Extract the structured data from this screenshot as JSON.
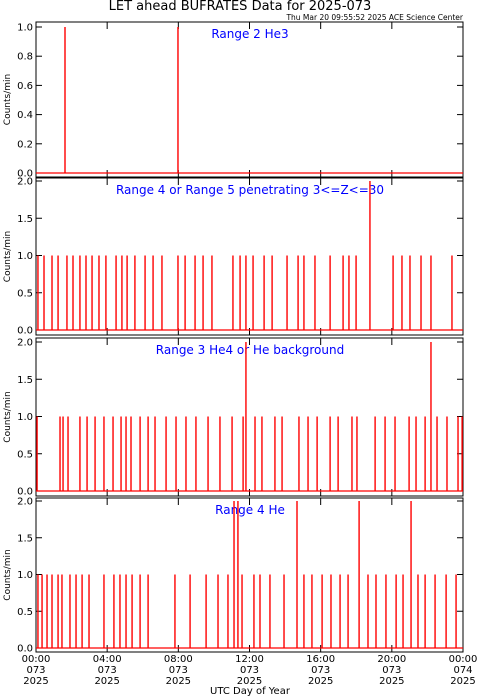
{
  "title": "LET ahead BUFRATES Data for 2025-073",
  "timestamp": "Thu Mar 20 09:55:52 2025 ACE Science Center",
  "xlabel": "UTC Day of Year",
  "chart_data": [
    {
      "type": "spike",
      "title": "Range 2 He3",
      "ylabel": "Counts/min",
      "color": "#ff0000",
      "label_color": "#0000ff",
      "xlim": [
        0,
        24
      ],
      "ylim": [
        0,
        1
      ],
      "yticks": [
        {
          "value": 0,
          "label": "0.0"
        },
        0.2,
        0.4,
        0.6,
        0.8,
        {
          "value": 1,
          "label": "1.0"
        }
      ],
      "x": [
        1.63,
        7.98
      ],
      "values": [
        1,
        1
      ]
    },
    {
      "type": "spike",
      "title": "Range 4 or Range 5 penetrating 3<=Z<=30",
      "ylabel": "Counts/min",
      "color": "#ff0000",
      "label_color": "#0000ff",
      "xlim": [
        0,
        24
      ],
      "ylim": [
        0,
        2
      ],
      "yticks": [
        {
          "value": 0,
          "label": "0.0"
        },
        0.5,
        {
          "value": 1,
          "label": "1.0"
        },
        1.5,
        {
          "value": 2,
          "label": "2.0"
        }
      ],
      "x": [
        0.11,
        0.45,
        0.9,
        1.24,
        1.74,
        2.08,
        2.47,
        2.81,
        3.15,
        3.54,
        3.93,
        4.5,
        4.83,
        5.12,
        5.56,
        6.13,
        6.58,
        7.08,
        7.98,
        8.38,
        8.94,
        9.39,
        9.89,
        11.07,
        11.47,
        11.8,
        12.2,
        12.82,
        13.27,
        14.11,
        14.73,
        15.06,
        15.68,
        16.53,
        17.26,
        17.59,
        17.99,
        18.77,
        20.07,
        20.57,
        21.02,
        21.64,
        22.2,
        23.38
      ],
      "values": [
        1,
        1,
        1,
        1,
        1,
        1,
        1,
        1,
        1,
        1,
        1,
        1,
        1,
        1,
        1,
        1,
        1,
        1,
        1,
        1,
        1,
        1,
        1,
        1,
        1,
        1,
        1,
        1,
        1,
        1,
        1,
        1,
        1,
        1,
        1,
        1,
        1,
        2,
        1,
        1,
        1,
        1,
        1,
        1
      ]
    },
    {
      "type": "spike",
      "title": "Range 3 He4 or He background",
      "ylabel": "Counts/min",
      "color": "#ff0000",
      "label_color": "#0000ff",
      "xlim": [
        0,
        24
      ],
      "ylim": [
        0,
        2
      ],
      "yticks": [
        {
          "value": 0,
          "label": "0.0"
        },
        0.5,
        {
          "value": 1,
          "label": "1.0"
        },
        1.5,
        {
          "value": 2,
          "label": "2.0"
        }
      ],
      "x": [
        0.06,
        1.35,
        1.52,
        1.8,
        2.47,
        2.87,
        3.32,
        3.82,
        4.33,
        4.78,
        5.06,
        5.34,
        5.85,
        6.3,
        6.69,
        7.31,
        7.87,
        8.43,
        8.99,
        9.67,
        10.34,
        11.02,
        11.64,
        11.8,
        12.31,
        12.7,
        13.43,
        13.83,
        14.78,
        15.29,
        15.8,
        16.53,
        16.98,
        17.76,
        18.04,
        19.06,
        19.62,
        20.18,
        20.97,
        21.36,
        21.87,
        22.2,
        22.54,
        23.1,
        23.72,
        23.95
      ],
      "values": [
        1,
        1,
        1,
        1,
        1,
        1,
        1,
        1,
        1,
        1,
        1,
        1,
        1,
        1,
        1,
        1,
        1,
        1,
        1,
        1,
        1,
        1,
        1,
        2,
        1,
        1,
        1,
        1,
        1,
        1,
        1,
        1,
        1,
        1,
        1,
        1,
        1,
        1,
        1,
        1,
        1,
        2,
        1,
        1,
        1,
        1
      ]
    },
    {
      "type": "spike",
      "title": "Range 4 He",
      "ylabel": "Counts/min",
      "color": "#ff0000",
      "label_color": "#0000ff",
      "xlim": [
        0,
        24
      ],
      "ylim": [
        0,
        2
      ],
      "yticks": [
        {
          "value": 0,
          "label": "0.0"
        },
        0.5,
        {
          "value": 1,
          "label": "1.0"
        },
        1.5,
        {
          "value": 2,
          "label": "2.0"
        }
      ],
      "xticks": [
        {
          "value": 0,
          "label": [
            "00:00",
            "073",
            "2025"
          ]
        },
        {
          "value": 4,
          "label": [
            "04:00",
            "073",
            "2025"
          ]
        },
        {
          "value": 8,
          "label": [
            "08:00",
            "073",
            "2025"
          ]
        },
        {
          "value": 12,
          "label": [
            "12:00",
            "073",
            "2025"
          ]
        },
        {
          "value": 16,
          "label": [
            "16:00",
            "073",
            "2025"
          ]
        },
        {
          "value": 20,
          "label": [
            "20:00",
            "073",
            "2025"
          ]
        },
        {
          "value": 24,
          "label": [
            "00:00",
            "074",
            "2025"
          ]
        }
      ],
      "x": [
        0.11,
        0.34,
        0.62,
        0.9,
        1.24,
        1.46,
        1.91,
        2.25,
        2.59,
        2.98,
        3.82,
        4.38,
        4.72,
        5.06,
        5.4,
        5.85,
        6.3,
        7.81,
        8.66,
        9.56,
        10.23,
        10.79,
        11.13,
        11.35,
        11.58,
        12.25,
        12.59,
        13.15,
        13.94,
        14.67,
        15.06,
        15.51,
        16.08,
        16.58,
        17.09,
        17.54,
        18.16,
        18.66,
        19.11,
        19.67,
        20.24,
        20.63,
        21.08,
        21.47,
        21.87,
        22.43,
        23.05,
        23.61
      ],
      "values": [
        1,
        1,
        1,
        1,
        1,
        1,
        1,
        1,
        1,
        1,
        1,
        1,
        1,
        1,
        1,
        1,
        1,
        1,
        1,
        1,
        1,
        1,
        2,
        2,
        1,
        1,
        1,
        1,
        1,
        2,
        1,
        1,
        1,
        1,
        1,
        1,
        2,
        1,
        1,
        1,
        1,
        1,
        2,
        1,
        1,
        1,
        1,
        1
      ]
    }
  ]
}
